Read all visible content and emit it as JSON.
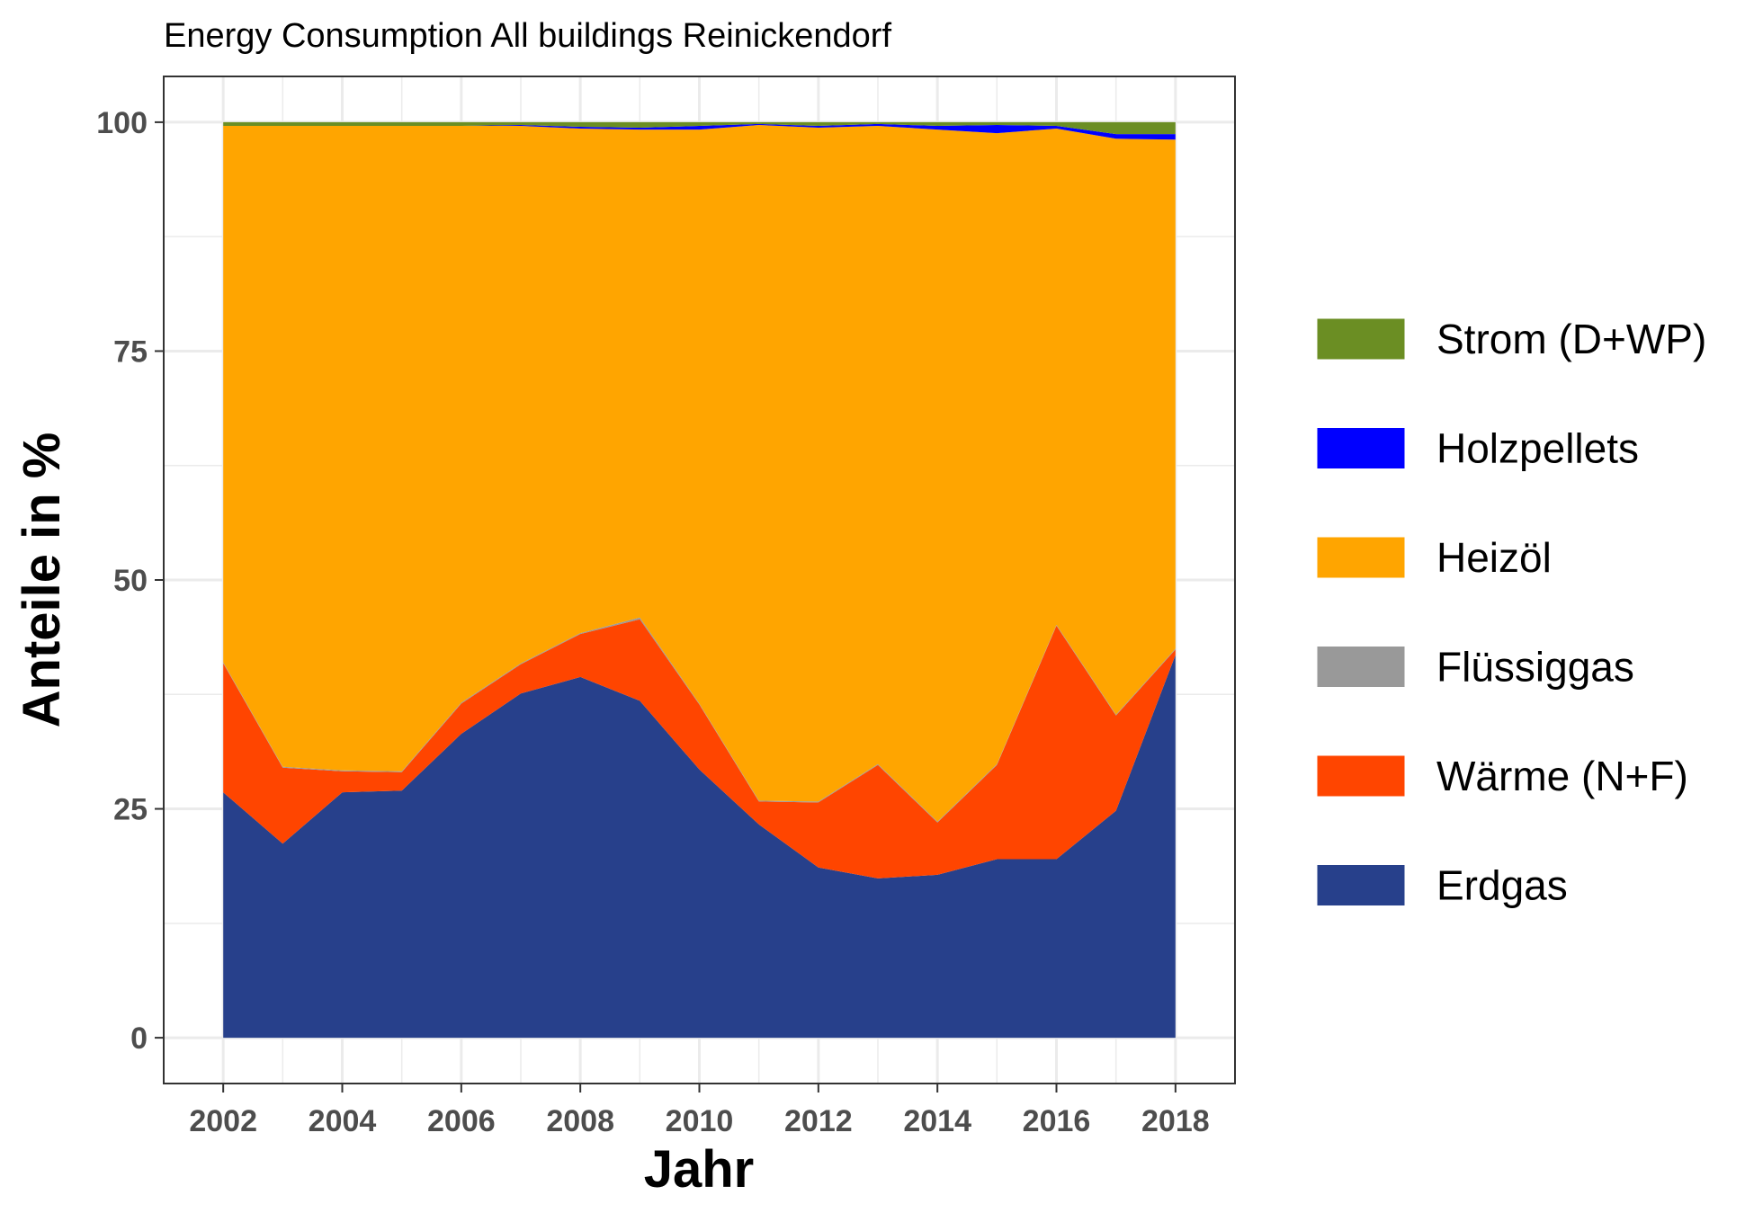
{
  "chart_data": {
    "type": "area",
    "stacked": true,
    "title": "Energy Consumption All buildings Reinickendorf",
    "xlabel": "Jahr",
    "ylabel": "Anteile in %",
    "x": [
      2002,
      2003,
      2004,
      2005,
      2006,
      2007,
      2008,
      2009,
      2010,
      2011,
      2012,
      2013,
      2014,
      2015,
      2016,
      2017,
      2018
    ],
    "x_ticks": [
      "2002",
      "2004",
      "2006",
      "2008",
      "2010",
      "2012",
      "2014",
      "2016",
      "2018"
    ],
    "y_ticks": [
      "0",
      "25",
      "50",
      "75",
      "100"
    ],
    "xlim": [
      2001,
      2019
    ],
    "ylim": [
      -5,
      105
    ],
    "grid": true,
    "legend_position": "right",
    "series": [
      {
        "name": "Erdgas",
        "color": "#27408B",
        "values": [
          26.8,
          21.2,
          26.8,
          27.0,
          33.2,
          37.6,
          39.4,
          36.8,
          29.3,
          23.3,
          18.6,
          17.4,
          17.8,
          19.5,
          19.5,
          24.8,
          41.8
        ]
      },
      {
        "name": "Wärme (N+F)",
        "color": "#FF4500",
        "values": [
          14.1,
          8.3,
          2.3,
          2.0,
          3.3,
          3.2,
          4.7,
          8.9,
          7.1,
          2.5,
          7.1,
          12.4,
          5.7,
          10.3,
          25.5,
          10.4,
          0.6
        ]
      },
      {
        "name": "Flüssiggas",
        "color": "#999999",
        "values": [
          0.1,
          0.1,
          0.1,
          0.1,
          0.1,
          0.1,
          0.1,
          0.2,
          0.1,
          0.1,
          0.1,
          0.1,
          0.1,
          0.1,
          0.1,
          0.1,
          0.1
        ]
      },
      {
        "name": "Heizöl",
        "color": "#FFA500",
        "values": [
          58.6,
          70.0,
          70.4,
          70.5,
          63.0,
          58.7,
          55.1,
          53.3,
          62.7,
          73.8,
          73.6,
          69.7,
          75.6,
          68.9,
          54.2,
          62.9,
          55.6
        ]
      },
      {
        "name": "Holzpellets",
        "color": "#0000FF",
        "values": [
          0.0,
          0.0,
          0.0,
          0.0,
          0.0,
          0.1,
          0.2,
          0.2,
          0.4,
          0.1,
          0.2,
          0.2,
          0.4,
          0.9,
          0.3,
          0.5,
          0.6
        ]
      },
      {
        "name": "Strom (D+WP)",
        "color": "#6B8E23",
        "values": [
          0.4,
          0.4,
          0.4,
          0.4,
          0.4,
          0.3,
          0.5,
          0.6,
          0.4,
          0.2,
          0.4,
          0.2,
          0.4,
          0.3,
          0.4,
          1.3,
          1.3
        ]
      }
    ],
    "legend_order": [
      "Strom (D+WP)",
      "Holzpellets",
      "Heizöl",
      "Flüssiggas",
      "Wärme (N+F)",
      "Erdgas"
    ]
  }
}
